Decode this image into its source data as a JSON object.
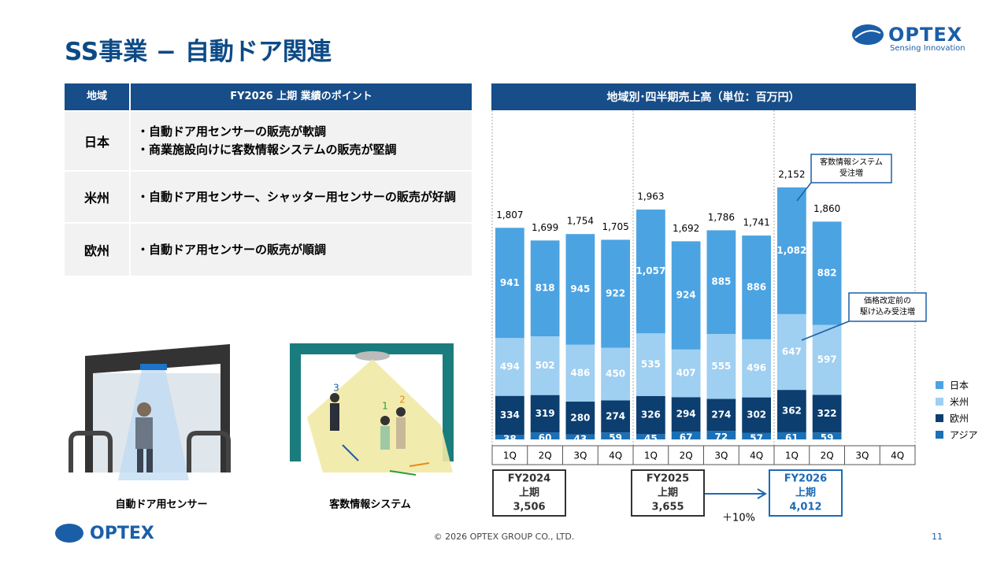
{
  "header": {
    "title": "SS事業 − 自動ドア関連",
    "logo": "OPTEX",
    "tagline": "Sensing Innovation"
  },
  "table": {
    "headers": [
      "地域",
      "FY2026 上期 業績のポイント"
    ],
    "rows": [
      [
        "日本",
        [
          "・自動ドア用センサーの販売が軟調",
          "・商業施設向けに客数情報システムの販売が堅調"
        ]
      ],
      [
        "米州",
        [
          "・自動ドア用センサー、シャッター用センサーの販売が好調"
        ]
      ],
      [
        "欧州",
        [
          "・自動ドア用センサーの販売が順調"
        ]
      ]
    ]
  },
  "illustrations": {
    "captions": [
      "自動ドア用センサー",
      "客数情報システム"
    ],
    "figure_labels": [
      "3",
      "1",
      "2"
    ]
  },
  "chart_data": {
    "type": "stacked-bar",
    "title": "地域別･四半期売上高（単位：百万円）",
    "categories": [
      "1Q",
      "2Q",
      "3Q",
      "4Q",
      "1Q",
      "2Q",
      "3Q",
      "4Q",
      "1Q",
      "2Q",
      "3Q",
      "4Q"
    ],
    "series": [
      {
        "name": "日本",
        "color": "#4ba3e2",
        "values": [
          941,
          818,
          945,
          922,
          1057,
          924,
          885,
          886,
          1082,
          882,
          null,
          null
        ],
        "value_labels": [
          "941",
          "818",
          "945",
          "922",
          "1,057",
          "924",
          "885",
          "886",
          "1,082",
          "882",
          null,
          null
        ]
      },
      {
        "name": "米州",
        "color": "#9fcff1",
        "values": [
          494,
          502,
          486,
          450,
          535,
          407,
          555,
          496,
          647,
          597,
          null,
          null
        ]
      },
      {
        "name": "欧州",
        "color": "#0c3e6f",
        "values": [
          334,
          319,
          280,
          274,
          326,
          294,
          274,
          302,
          362,
          322,
          null,
          null
        ]
      },
      {
        "name": "アジア",
        "color": "#1b70b6",
        "values": [
          38,
          60,
          43,
          59,
          45,
          67,
          72,
          57,
          61,
          59,
          null,
          null
        ]
      }
    ],
    "totals": [
      1807,
      1699,
      1754,
      1705,
      1963,
      1692,
      1786,
      1741,
      2152,
      1860,
      null,
      null
    ],
    "total_labels": [
      "1,807",
      "1,699",
      "1,754",
      "1,705",
      "1,963",
      "1,692",
      "1,786",
      "1,741",
      "2,152",
      "1,860",
      null,
      null
    ],
    "periods": [
      [
        "FY2024",
        "上期",
        "3,506"
      ],
      [
        "FY2025",
        "上期",
        "3,655"
      ],
      [
        "FY2026",
        "上期",
        "4,012"
      ]
    ],
    "growth": "＋10%",
    "annotations": [
      [
        "客数情報システム",
        "受注増"
      ],
      [
        "価格改定前の",
        "駆け込み受注増"
      ]
    ]
  },
  "footer": {
    "copyright": "© 2026 OPTEX GROUP CO., LTD.",
    "page": "11"
  }
}
